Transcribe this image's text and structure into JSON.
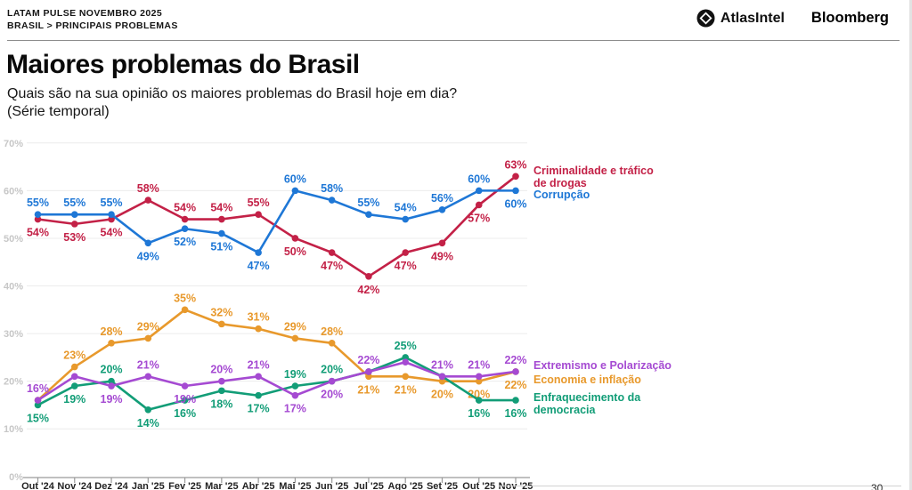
{
  "header": {
    "kicker_line1": "LATAM PULSE NOVEMBRO 2025",
    "kicker_line2": "BRASIL > PRINCIPAIS PROBLEMAS",
    "logo_atlas": "AtlasIntel",
    "logo_bloomberg": "Bloomberg"
  },
  "title": "Maiores problemas do Brasil",
  "subtitle_line1": "Quais são na sua opinião os maiores problemas do Brasil hoje em dia?",
  "subtitle_line2": "(Série temporal)",
  "page_number": "30",
  "chart_data": {
    "type": "line",
    "title": "Maiores problemas do Brasil",
    "categories": [
      "Out '24",
      "Nov '24",
      "Dez '24",
      "Jan '25",
      "Fev '25",
      "Mar '25",
      "Abr '25",
      "Mai '25",
      "Jun '25",
      "Jul '25",
      "Ago '25",
      "Set '25",
      "Out '25",
      "Nov '25"
    ],
    "y_tick_labels": [
      "70%",
      "60%",
      "50%",
      "40%",
      "30%",
      "20%",
      "10%",
      "0%"
    ],
    "y_tick_values": [
      70,
      60,
      50,
      40,
      30,
      20,
      10,
      0
    ],
    "ylim": [
      0,
      70
    ],
    "grid": true,
    "legend_position": "right",
    "value_suffix": "%",
    "series": [
      {
        "name": "Economia e inflação",
        "legend_lines": [
          "Economia e inflação"
        ],
        "color": "#e8992c",
        "values": [
          16,
          23,
          28,
          29,
          35,
          32,
          31,
          29,
          28,
          21,
          21,
          20,
          20,
          22
        ],
        "label_pos": [
          null,
          "above",
          "above",
          "above",
          "above",
          "above",
          "above",
          "above",
          "above",
          "below",
          "below",
          "below",
          "below",
          "below"
        ]
      },
      {
        "name": "Enfraquecimento da democracia",
        "legend_lines": [
          "Enfraquecimento da",
          "democracia"
        ],
        "color": "#129d77",
        "values": [
          15,
          19,
          20,
          14,
          16,
          18,
          17,
          19,
          20,
          22,
          25,
          21,
          16,
          16
        ],
        "label_pos": [
          "below",
          "below",
          "above",
          "below",
          "below",
          "below",
          "below",
          "above",
          "above",
          null,
          "above",
          null,
          "below",
          "below"
        ]
      },
      {
        "name": "Extremismo e Polarização",
        "legend_lines": [
          "Extremismo e Polarização"
        ],
        "color": "#a54ad2",
        "values": [
          16,
          21,
          19,
          21,
          19,
          20,
          21,
          17,
          20,
          22,
          24,
          21,
          21,
          22
        ],
        "label_pos": [
          "above",
          null,
          "below",
          "above",
          "below",
          "above",
          "above",
          "below",
          "below",
          "above",
          null,
          "above",
          "above",
          "above"
        ]
      },
      {
        "name": "Criminalidade e tráfico de drogas",
        "legend_lines": [
          "Criminalidade e tráfico",
          "de drogas"
        ],
        "color": "#c32147",
        "values": [
          54,
          53,
          54,
          58,
          54,
          54,
          55,
          50,
          47,
          42,
          47,
          49,
          57,
          63
        ],
        "label_pos": [
          "below",
          "below",
          "below",
          "above",
          "above",
          "above",
          "above",
          "below",
          "below",
          "below",
          "below",
          "below",
          "below",
          "above"
        ]
      },
      {
        "name": "Corrupção",
        "legend_lines": [
          "Corrupção"
        ],
        "color": "#1e77d6",
        "values": [
          55,
          55,
          55,
          49,
          52,
          51,
          47,
          60,
          58,
          55,
          54,
          56,
          60,
          60
        ],
        "label_pos": [
          "above",
          "above",
          "above",
          "below",
          "below",
          "below",
          "below",
          "above",
          "above",
          "above",
          "above",
          "above",
          "above",
          "below"
        ]
      }
    ]
  }
}
